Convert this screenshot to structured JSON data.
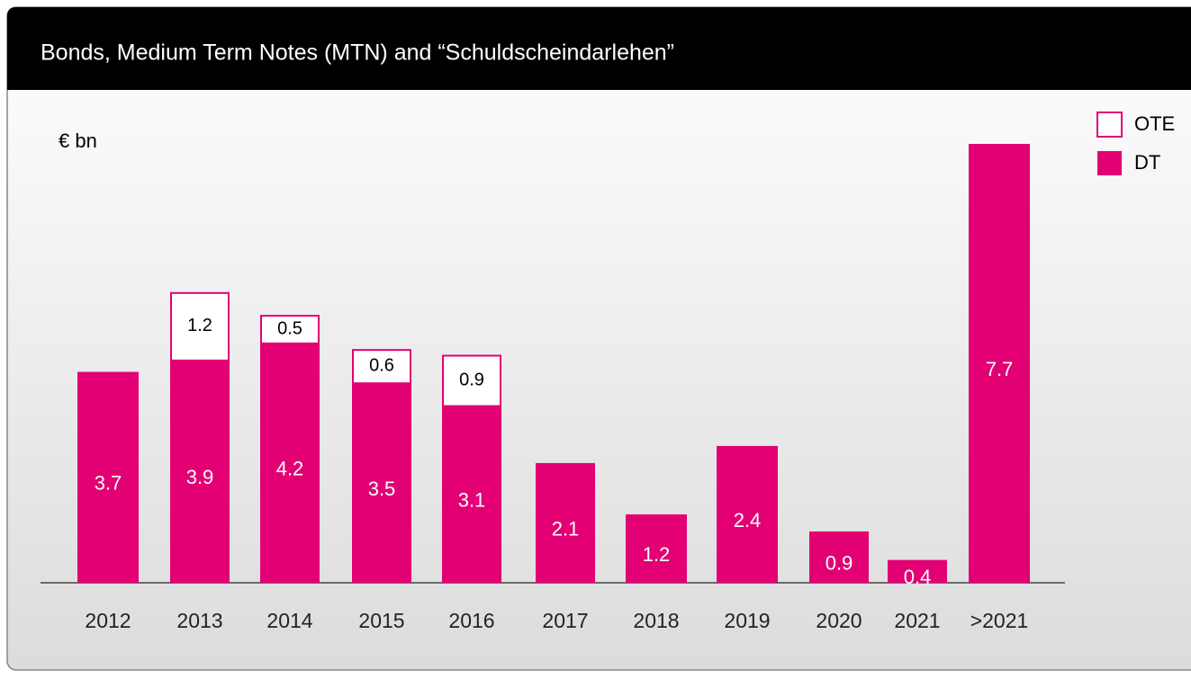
{
  "chart_data": {
    "type": "bar",
    "stacked": true,
    "title": "Bonds, Medium Term Notes (MTN) and “Schuldscheindarlehen”",
    "unit_label": "€ bn",
    "categories": [
      "2012",
      "2013",
      "2014",
      "2015",
      "2016",
      "2017",
      "2018",
      "2019",
      "2020",
      "2021",
      ">2021"
    ],
    "series": [
      {
        "name": "DT",
        "color": "#e20074",
        "fill": "#e20074",
        "values": [
          3.7,
          3.9,
          4.2,
          3.5,
          3.1,
          2.1,
          1.2,
          2.4,
          0.9,
          0.4,
          7.7
        ]
      },
      {
        "name": "OTE",
        "color": "#e20074",
        "fill": "#ffffff",
        "values": [
          null,
          1.2,
          0.5,
          0.6,
          0.9,
          null,
          null,
          null,
          null,
          null,
          null
        ]
      }
    ]
  }
}
